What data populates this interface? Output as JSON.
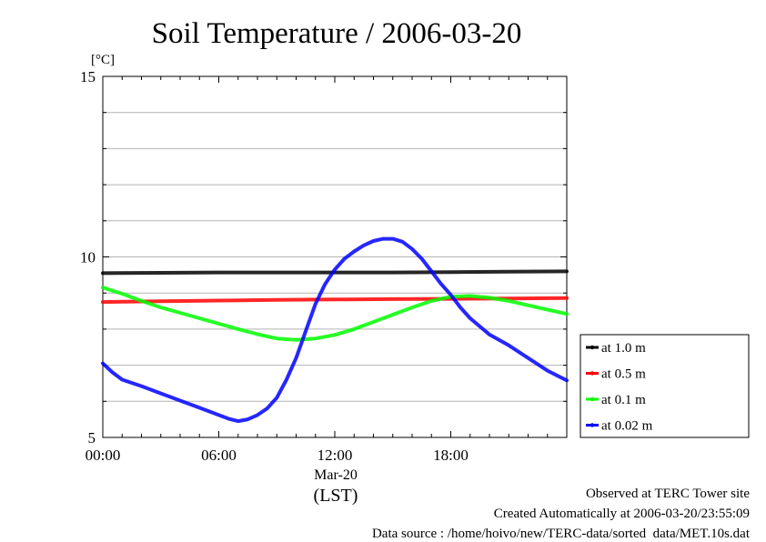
{
  "chart_data": {
    "type": "line",
    "title": "Soil Temperature / 2006-03-20",
    "ylabel": "[°C]",
    "xlabel": "(LST)",
    "x_date_label": "Mar-20",
    "xlim_hours": [
      0,
      24
    ],
    "ylim": [
      5,
      15
    ],
    "yticks": [
      "5",
      "10",
      "15"
    ],
    "xticks": [
      "00:00",
      "06:00",
      "12:00",
      "18:00"
    ],
    "grid": true,
    "legend_position": "right",
    "series": [
      {
        "name": "at 1.0 m",
        "color": "#000000",
        "x": [
          0,
          3,
          6,
          9,
          12,
          15,
          18,
          21,
          24
        ],
        "y": [
          9.55,
          9.56,
          9.57,
          9.57,
          9.57,
          9.57,
          9.58,
          9.59,
          9.6
        ]
      },
      {
        "name": "at 0.5 m",
        "color": "#ff0000",
        "x": [
          0,
          3,
          6,
          9,
          12,
          15,
          18,
          21,
          24
        ],
        "y": [
          8.75,
          8.77,
          8.79,
          8.81,
          8.82,
          8.83,
          8.84,
          8.85,
          8.86
        ]
      },
      {
        "name": "at 0.1 m",
        "color": "#00ff00",
        "x": [
          0,
          1,
          2,
          3,
          4,
          5,
          6,
          7,
          8,
          9,
          10,
          11,
          12,
          13,
          14,
          15,
          16,
          17,
          18,
          19,
          20,
          21,
          22,
          23,
          24
        ],
        "y": [
          9.15,
          8.98,
          8.78,
          8.6,
          8.45,
          8.3,
          8.15,
          8.0,
          7.86,
          7.74,
          7.7,
          7.74,
          7.84,
          8.0,
          8.2,
          8.4,
          8.6,
          8.78,
          8.9,
          8.92,
          8.87,
          8.78,
          8.66,
          8.54,
          8.42
        ]
      },
      {
        "name": "at 0.02 m",
        "color": "#0000ff",
        "x": [
          0,
          0.5,
          1,
          2,
          3,
          4,
          5,
          6,
          6.5,
          7,
          7.5,
          8,
          8.5,
          9,
          9.5,
          10,
          10.5,
          11,
          11.5,
          12,
          12.5,
          13,
          13.5,
          14,
          14.5,
          15,
          15.5,
          16,
          16.5,
          17,
          17.5,
          18,
          18.5,
          19,
          20,
          21,
          22,
          23,
          24
        ],
        "y": [
          7.05,
          6.8,
          6.6,
          6.42,
          6.22,
          6.02,
          5.82,
          5.62,
          5.52,
          5.45,
          5.5,
          5.62,
          5.8,
          6.1,
          6.6,
          7.2,
          7.95,
          8.7,
          9.25,
          9.65,
          9.95,
          10.15,
          10.32,
          10.44,
          10.5,
          10.5,
          10.42,
          10.22,
          9.95,
          9.6,
          9.25,
          8.95,
          8.6,
          8.3,
          7.85,
          7.55,
          7.2,
          6.85,
          6.58
        ]
      }
    ]
  },
  "footer": {
    "line1": "Observed at TERC Tower site",
    "line2": "Created Automatically at 2006-03-20/23:55:09",
    "line3": "Data source : /home/hoivo/new/TERC-data/sorted  data/MET.10s.dat"
  }
}
